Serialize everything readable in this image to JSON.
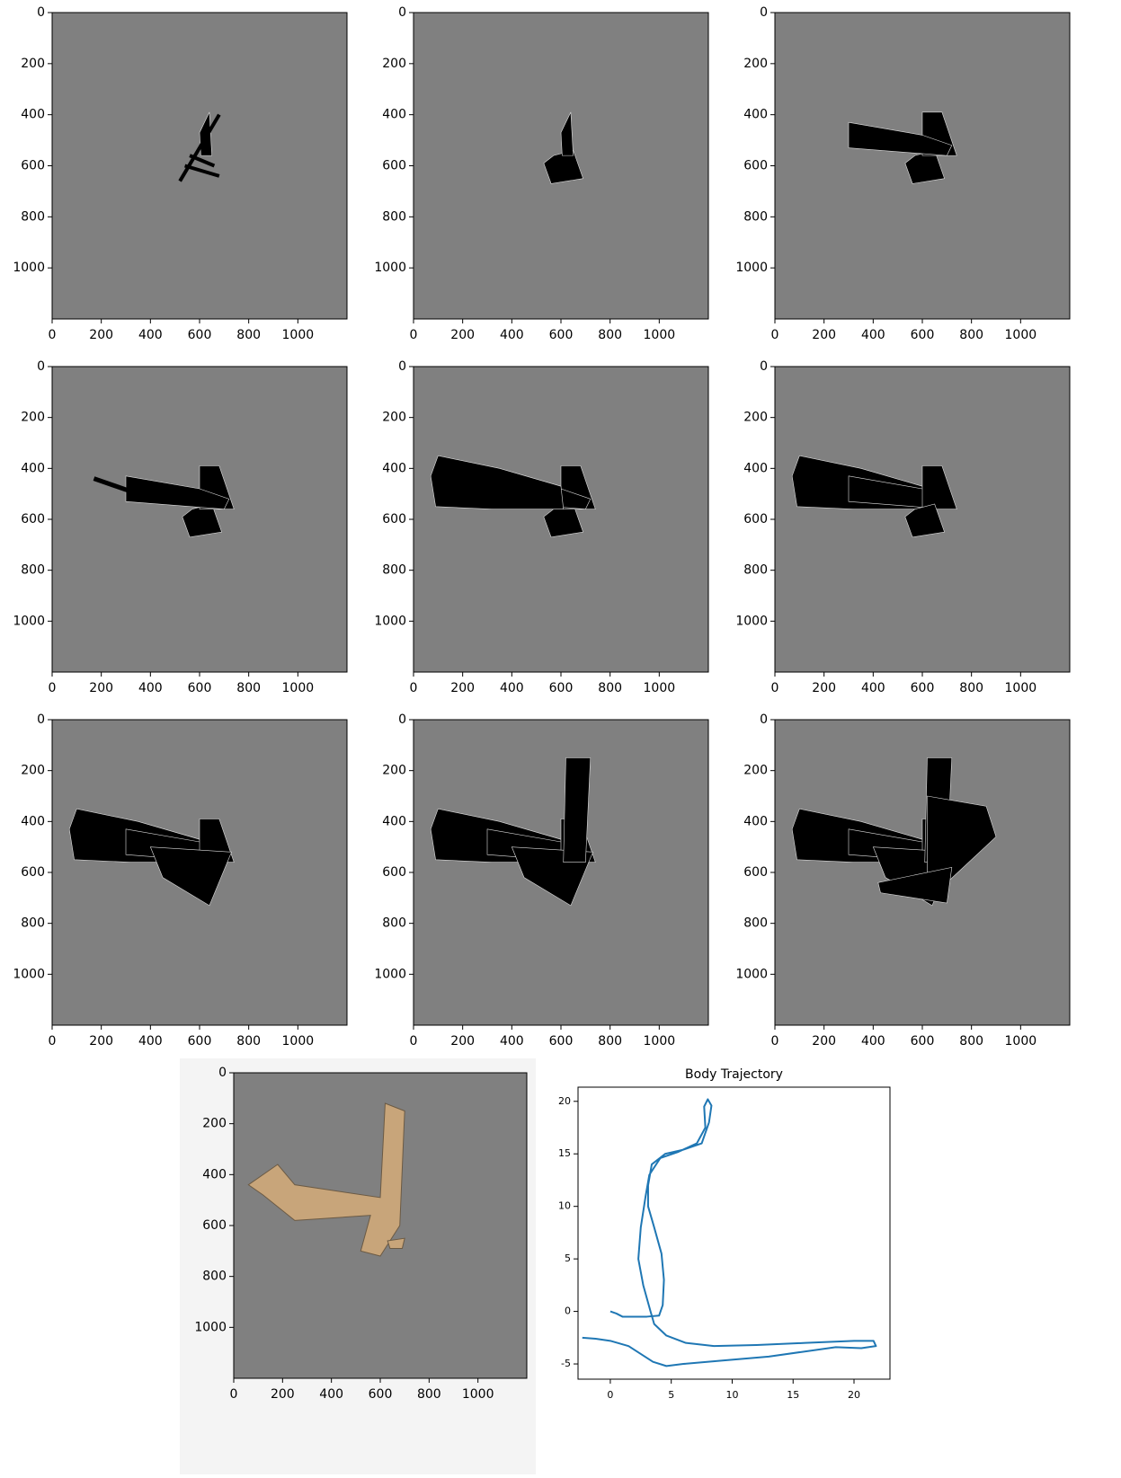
{
  "chart_data": [
    {
      "type": "image",
      "xlim": [
        0,
        1200
      ],
      "ylim": [
        1200,
        0
      ],
      "xticks": [
        0,
        200,
        400,
        600,
        800,
        1000
      ],
      "yticks": [
        0,
        200,
        400,
        600,
        800,
        1000
      ]
    },
    {
      "type": "image",
      "xlim": [
        0,
        1200
      ],
      "ylim": [
        1200,
        0
      ],
      "xticks": [
        0,
        200,
        400,
        600,
        800,
        1000
      ],
      "yticks": [
        0,
        200,
        400,
        600,
        800,
        1000
      ]
    },
    {
      "type": "image",
      "xlim": [
        0,
        1200
      ],
      "ylim": [
        1200,
        0
      ],
      "xticks": [
        0,
        200,
        400,
        600,
        800,
        1000
      ],
      "yticks": [
        0,
        200,
        400,
        600,
        800,
        1000
      ]
    },
    {
      "type": "image",
      "xlim": [
        0,
        1200
      ],
      "ylim": [
        1200,
        0
      ],
      "xticks": [
        0,
        200,
        400,
        600,
        800,
        1000
      ],
      "yticks": [
        0,
        200,
        400,
        600,
        800,
        1000
      ]
    },
    {
      "type": "image",
      "xlim": [
        0,
        1200
      ],
      "ylim": [
        1200,
        0
      ],
      "xticks": [
        0,
        200,
        400,
        600,
        800,
        1000
      ],
      "yticks": [
        0,
        200,
        400,
        600,
        800,
        1000
      ]
    },
    {
      "type": "image",
      "xlim": [
        0,
        1200
      ],
      "ylim": [
        1200,
        0
      ],
      "xticks": [
        0,
        200,
        400,
        600,
        800,
        1000
      ],
      "yticks": [
        0,
        200,
        400,
        600,
        800,
        1000
      ]
    },
    {
      "type": "image",
      "xlim": [
        0,
        1200
      ],
      "ylim": [
        1200,
        0
      ],
      "xticks": [
        0,
        200,
        400,
        600,
        800,
        1000
      ],
      "yticks": [
        0,
        200,
        400,
        600,
        800,
        1000
      ]
    },
    {
      "type": "image",
      "xlim": [
        0,
        1200
      ],
      "ylim": [
        1200,
        0
      ],
      "xticks": [
        0,
        200,
        400,
        600,
        800,
        1000
      ],
      "yticks": [
        0,
        200,
        400,
        600,
        800,
        1000
      ]
    },
    {
      "type": "image",
      "xlim": [
        0,
        1200
      ],
      "ylim": [
        1200,
        0
      ],
      "xticks": [
        0,
        200,
        400,
        600,
        800,
        1000
      ],
      "yticks": [
        0,
        200,
        400,
        600,
        800,
        1000
      ]
    },
    {
      "type": "image",
      "xlim": [
        0,
        1200
      ],
      "ylim": [
        1200,
        0
      ],
      "xticks": [
        0,
        200,
        400,
        600,
        800,
        1000
      ],
      "yticks": [
        0,
        200,
        400,
        600,
        800,
        1000
      ]
    },
    {
      "type": "line",
      "title": "Body Trajectory",
      "xlim": [
        -2.65,
        22.95
      ],
      "ylim": [
        -6.45,
        21.35
      ],
      "xticks": [
        0,
        5,
        10,
        15,
        20
      ],
      "yticks": [
        -5,
        0,
        5,
        10,
        15,
        20
      ],
      "series": [
        {
          "color": "#1f77b4",
          "x": [
            0,
            0.5,
            1,
            2,
            3,
            4,
            4.3,
            4.4,
            4.2,
            3.6,
            3.1,
            3.1,
            3.4,
            4.5,
            6,
            7.5,
            8.1,
            8.3,
            8,
            7.7,
            7.8,
            7.1,
            5.6,
            4.1,
            3.2,
            2.9,
            2.5,
            2.3,
            2.7,
            3.3,
            3.6,
            4.6,
            6.2,
            8.5,
            12,
            16,
            20,
            21.6,
            21.8,
            20.6,
            18.5,
            13,
            9,
            6,
            4.6,
            3.5,
            1.5,
            0,
            -1.2,
            -2.3
          ],
          "y": [
            0,
            -0.2,
            -0.5,
            -0.5,
            -0.5,
            -0.4,
            0.6,
            3,
            5.5,
            8,
            10,
            12,
            14,
            15,
            15.4,
            16,
            18,
            19.6,
            20.2,
            19.5,
            17.5,
            16,
            15.2,
            14.6,
            13,
            11,
            8,
            5,
            2.5,
            0,
            -1.2,
            -2.3,
            -3,
            -3.3,
            -3.2,
            -3,
            -2.8,
            -2.8,
            -3.3,
            -3.5,
            -3.4,
            -4.3,
            -4.7,
            -5,
            -5.2,
            -4.8,
            -3.3,
            -2.8,
            -2.6,
            -2.5
          ]
        }
      ]
    }
  ]
}
